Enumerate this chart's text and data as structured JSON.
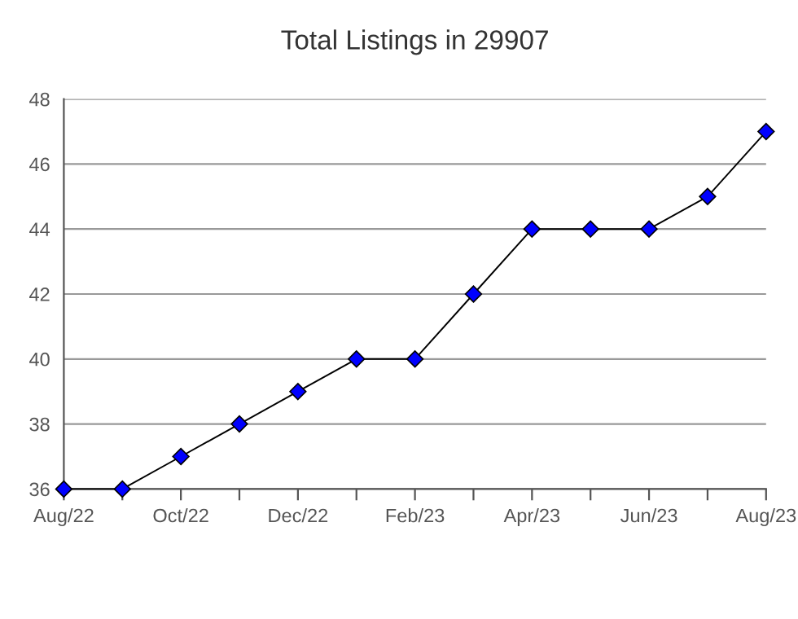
{
  "chart_data": {
    "type": "line",
    "title": "Total Listings in 29907",
    "categories": [
      "Aug/22",
      null,
      "Oct/22",
      null,
      "Dec/22",
      null,
      "Feb/23",
      null,
      "Apr/23",
      null,
      "Jun/23",
      null,
      "Aug/23"
    ],
    "series": [
      {
        "color": "#0000ff",
        "values": [
          36,
          36,
          37,
          38,
          39,
          40,
          40,
          42,
          44,
          44,
          44,
          45,
          47
        ]
      }
    ],
    "ylim": [
      36,
      48
    ],
    "yticks": [
      36,
      38,
      40,
      42,
      44,
      46,
      48
    ],
    "grid": "y",
    "marker": "diamond",
    "line_style": "solid"
  }
}
